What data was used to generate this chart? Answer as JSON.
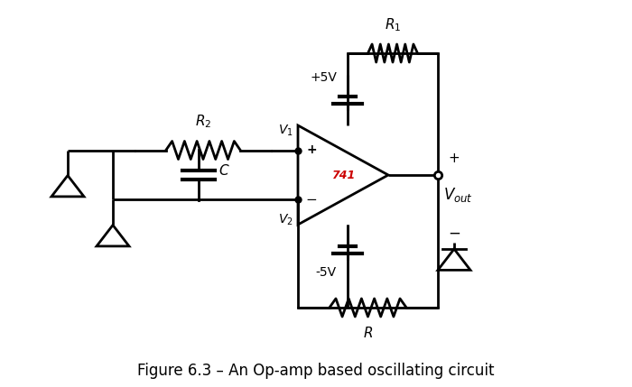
{
  "title": "Figure 6.3 – An Op-amp based oscillating circuit",
  "title_fontsize": 12,
  "bg_color": "#ffffff",
  "line_color": "#000000",
  "line_width": 2.0,
  "R1_label": "$R_1$",
  "R2_label": "$R_2$",
  "R_label": "$R$",
  "C_label": "$C$",
  "V1_label": "$V_1$",
  "V2_label": "$V_2$",
  "Vout_label": "$V_{out}$",
  "plus5_label": "+5V",
  "minus5_label": "-5V",
  "opamp_label": "741",
  "opamp_color": "#cc0000",
  "plus_label": "+",
  "minus_label": "−"
}
